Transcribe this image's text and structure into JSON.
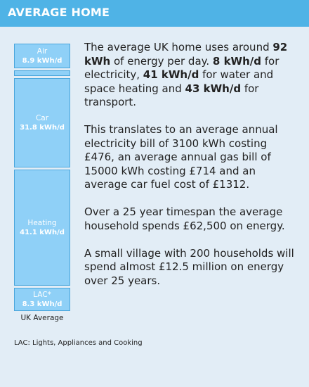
{
  "header": {
    "title": "AVERAGE HOME"
  },
  "breakdown": {
    "caption": "UK Average",
    "blocks": [
      {
        "name": "Air",
        "value": "8.9 kWh/d"
      },
      {
        "name": "",
        "value": ""
      },
      {
        "name": "Car",
        "value": "31.8 kWh/d"
      },
      {
        "name": "Heating",
        "value": "41.1 kWh/d"
      },
      {
        "name": "LAC*",
        "value": "8.3 kWh/d"
      }
    ]
  },
  "description": {
    "p1": {
      "t1": "The average UK home uses around ",
      "b1": "92 kWh",
      "t2": " of energy per day. ",
      "b2": "8 kWh/d",
      "t3": " for electricity, ",
      "b3": "41 kWh/d",
      "t4": " for water and space heating and ",
      "b4": "43 kWh/d",
      "t5": " for transport."
    },
    "p2": "This translates to an average annual electricity bill of 3100 kWh costing £476, an average annual gas bill of 15000 kWh costing £714 and an average car fuel cost of £1312.",
    "p3": "Over a 25 year timespan the average household spends £62,500 on energy.",
    "p4": "A small village with 200 households will spend almost £12.5 million on energy over 25 years."
  },
  "footnote": "LAC: Lights, Appliances and Cooking"
}
